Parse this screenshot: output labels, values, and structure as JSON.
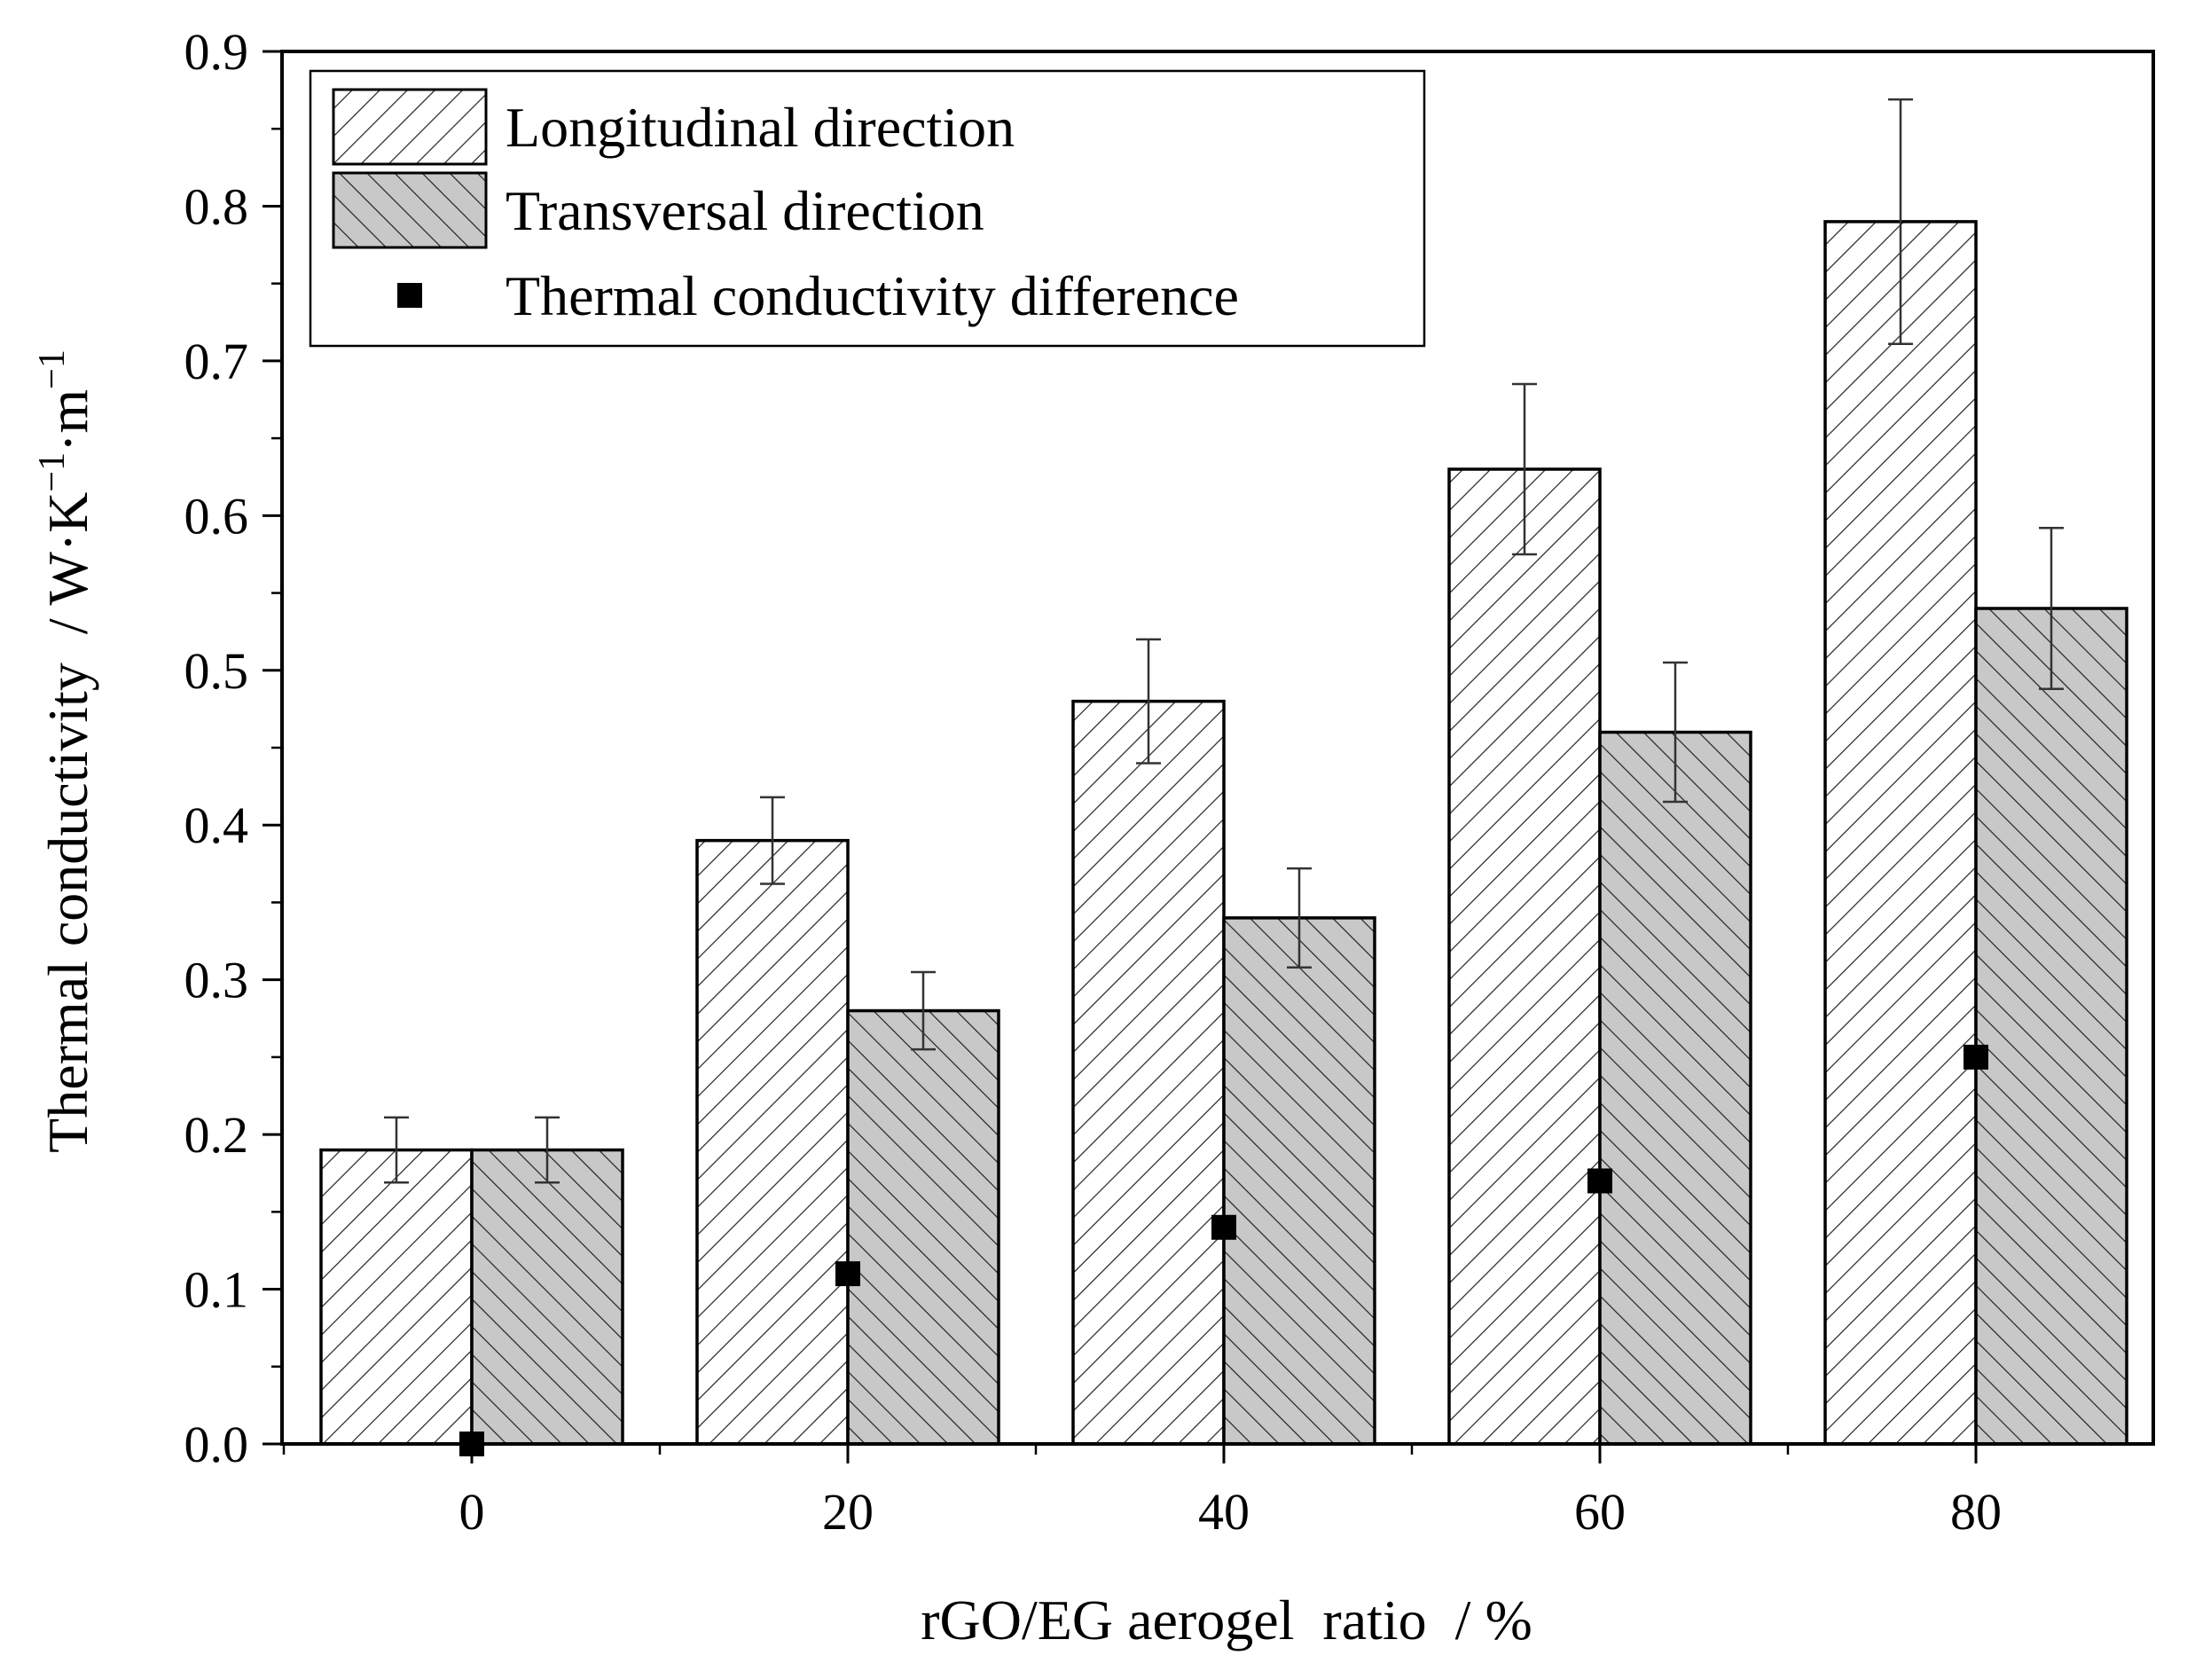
{
  "chart_data": {
    "type": "bar",
    "title": "",
    "xlabel": "rGO/EG aerogel  ratio  / %",
    "ylabel": "Thermal conductivity  / W·K",
    "ylabel_unit_parts": [
      "−1",
      "·m",
      "−1"
    ],
    "categories": [
      "0",
      "20",
      "40",
      "60",
      "80"
    ],
    "ylim": [
      0,
      0.9
    ],
    "yticks": [
      "0.0",
      "0.1",
      "0.2",
      "0.3",
      "0.4",
      "0.5",
      "0.6",
      "0.7",
      "0.8",
      "0.9"
    ],
    "legend_position": "top-left",
    "grid": false,
    "series": [
      {
        "name": "Longitudinal direction",
        "kind": "bar",
        "pattern": "forward-hatch",
        "fill": "#ffffff",
        "values": [
          0.19,
          0.39,
          0.48,
          0.63,
          0.79
        ],
        "errors": [
          0.021,
          0.028,
          0.04,
          0.055,
          0.079
        ]
      },
      {
        "name": "Transversal direction",
        "kind": "bar",
        "pattern": "back-hatch",
        "fill": "#c8c8c8",
        "values": [
          0.19,
          0.28,
          0.34,
          0.46,
          0.54
        ],
        "errors": [
          0.021,
          0.025,
          0.032,
          0.045,
          0.052
        ]
      },
      {
        "name": "Thermal conductivity difference",
        "kind": "scatter",
        "marker": "square",
        "color": "#000000",
        "values": [
          0.0,
          0.11,
          0.14,
          0.17,
          0.25
        ]
      }
    ]
  }
}
